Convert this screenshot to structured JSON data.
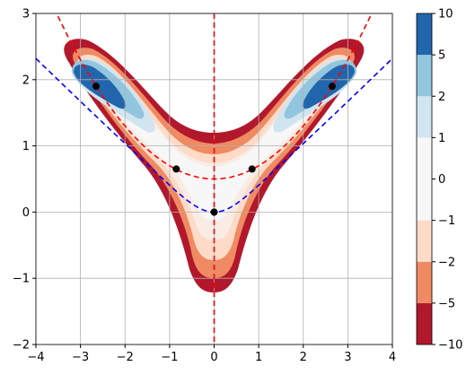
{
  "chart_data": {
    "type": "contour",
    "xlim": [
      -4,
      4
    ],
    "ylim": [
      -2,
      3
    ],
    "xticks": [
      "−4",
      "−3",
      "−2",
      "−1",
      "0",
      "1",
      "2",
      "3",
      "4"
    ],
    "yticks": [
      "−2",
      "−1",
      "0",
      "1",
      "2",
      "3"
    ],
    "grid": true,
    "colorbar": {
      "levels": [
        "−10",
        "−5",
        "−2",
        "−1",
        "0",
        "1",
        "2",
        "5",
        "10"
      ],
      "colors": [
        "#b2182b",
        "#ef8a62",
        "#fddbc7",
        "#f7f7f7",
        "#f7f7f7",
        "#d1e5f0",
        "#92c5de",
        "#2166ac"
      ]
    },
    "curves": [
      {
        "style": "dashed",
        "color": "#ff0000",
        "kind": "vertical-line",
        "x": 0
      },
      {
        "style": "dashed",
        "color": "#ff0000",
        "kind": "parabola",
        "formula": "y = 0.5 + 0.2 x^2"
      },
      {
        "style": "dashed",
        "color": "#0000ff",
        "kind": "curve",
        "formula": "y = 0.0 near origin, rising to 2.6 at |x|=4"
      }
    ],
    "points": [
      {
        "x": -2.65,
        "y": 1.9
      },
      {
        "x": -0.85,
        "y": 0.65
      },
      {
        "x": 0.0,
        "y": 0.0
      },
      {
        "x": 0.85,
        "y": 0.65
      },
      {
        "x": 2.65,
        "y": 1.9
      }
    ]
  }
}
